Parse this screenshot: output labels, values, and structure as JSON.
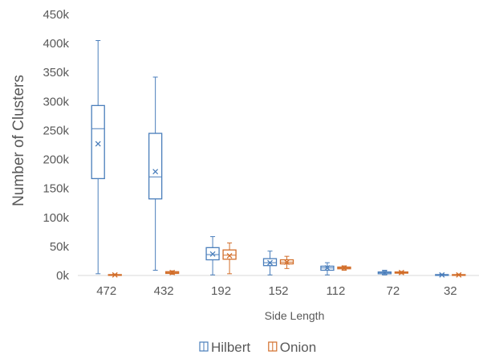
{
  "chart_data": {
    "type": "box",
    "title": "",
    "xlabel": "Side Length",
    "ylabel": "Number of Clusters",
    "ylim": [
      0,
      450000
    ],
    "yticks": [
      0,
      50000,
      100000,
      150000,
      200000,
      250000,
      300000,
      350000,
      400000,
      450000
    ],
    "ytick_labels": [
      "0k",
      "50k",
      "100k",
      "150k",
      "200k",
      "250k",
      "300k",
      "350k",
      "400k",
      "450k"
    ],
    "categories": [
      "472",
      "432",
      "192",
      "152",
      "112",
      "72",
      "32"
    ],
    "grid": false,
    "legend_position": "bottom",
    "series": [
      {
        "name": "Hilbert",
        "color": "#4a7ebb",
        "boxes": [
          {
            "min": 3000,
            "q1": 167000,
            "median": 253000,
            "q3": 293000,
            "max": 405000,
            "mean": 227000
          },
          {
            "min": 9000,
            "q1": 132000,
            "median": 170000,
            "q3": 245000,
            "max": 342000,
            "mean": 179000
          },
          {
            "min": 1000,
            "q1": 27000,
            "median": 36000,
            "q3": 48000,
            "max": 67000,
            "mean": 37000
          },
          {
            "min": 1000,
            "q1": 17000,
            "median": 22000,
            "q3": 29000,
            "max": 42000,
            "mean": 22000
          },
          {
            "min": 1000,
            "q1": 9000,
            "median": 13000,
            "q3": 16000,
            "max": 22000,
            "mean": 13000
          },
          {
            "min": 1000,
            "q1": 3000,
            "median": 5000,
            "q3": 6000,
            "max": 9000,
            "mean": 5000
          },
          {
            "min": 0,
            "q1": 500,
            "median": 1000,
            "q3": 1500,
            "max": 2500,
            "mean": 1000
          }
        ]
      },
      {
        "name": "Onion",
        "color": "#d26e2a",
        "boxes": [
          {
            "min": 0,
            "q1": 500,
            "median": 1000,
            "q3": 1500,
            "max": 2500,
            "mean": 1000
          },
          {
            "min": 2000,
            "q1": 3500,
            "median": 5000,
            "q3": 6500,
            "max": 8000,
            "mean": 5000
          },
          {
            "min": 3000,
            "q1": 28000,
            "median": 35000,
            "q3": 44000,
            "max": 56000,
            "mean": 34000
          },
          {
            "min": 12000,
            "q1": 20000,
            "median": 23000,
            "q3": 27000,
            "max": 33000,
            "mean": 23000
          },
          {
            "min": 9000,
            "q1": 11500,
            "median": 13000,
            "q3": 14500,
            "max": 16500,
            "mean": 13000
          },
          {
            "min": 3000,
            "q1": 4000,
            "median": 5000,
            "q3": 6000,
            "max": 7000,
            "mean": 5000
          },
          {
            "min": 0,
            "q1": 500,
            "median": 1000,
            "q3": 1500,
            "max": 2500,
            "mean": 1000
          }
        ]
      }
    ]
  }
}
